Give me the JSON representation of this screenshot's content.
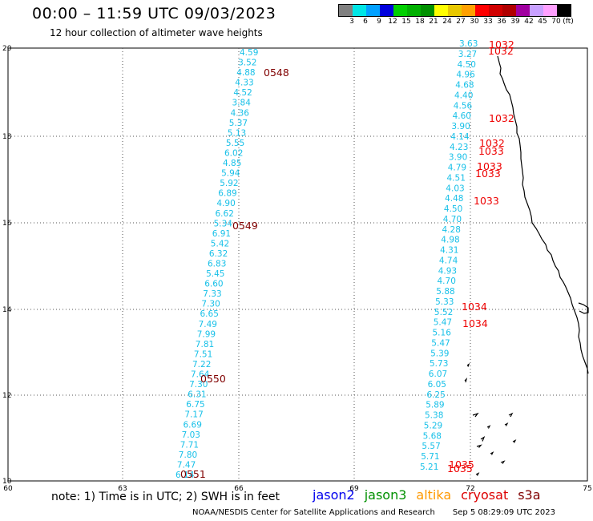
{
  "title": "00:00 – 11:59 UTC 09/03/2023",
  "subtitle": "12 hour collection of altimeter wave heights",
  "colorbar": {
    "colors": [
      "#808080",
      "#00e5e5",
      "#00a0ff",
      "#0000dd",
      "#00d000",
      "#00b000",
      "#009000",
      "#ffff00",
      "#e8c800",
      "#ffa000",
      "#ff0000",
      "#d00000",
      "#b00000",
      "#a000a0",
      "#c8a0ff",
      "#ffa0ff",
      "#000000"
    ],
    "labels": [
      "3",
      "6",
      "9",
      "12",
      "15",
      "18",
      "21",
      "24",
      "27",
      "30",
      "33",
      "36",
      "39",
      "42",
      "45",
      "70",
      "(ft)"
    ]
  },
  "axes": {
    "lon_ticks": [
      "60",
      "63",
      "66",
      "69",
      "72",
      "75"
    ],
    "lat_ticks": [
      "10",
      "12",
      "14",
      "16",
      "18",
      "20"
    ]
  },
  "swh_tracks": {
    "west": [
      "4.59",
      "3.52",
      "4.88",
      "4.33",
      "4.52",
      "3.84",
      "4.36",
      "5.37",
      "5.13",
      "5.55",
      "6.02",
      "4.85",
      "5.94",
      "5.92",
      "6.89",
      "4.90",
      "6.62",
      "5.34",
      "6.91",
      "5.42",
      "6.32",
      "6.83",
      "5.45",
      "6.60",
      "7.33",
      "7.30",
      "6.65",
      "7.49",
      "7.99",
      "7.81",
      "7.51",
      "7.22",
      "7.64",
      "7.30",
      "6.31",
      "6.75",
      "7.17",
      "6.69",
      "7.03",
      "7.71",
      "7.80",
      "7.47",
      "6.14"
    ],
    "east": [
      "3.63",
      "3.27",
      "4.50",
      "4.96",
      "4.68",
      "4.40",
      "4.56",
      "4.60",
      "3.90",
      "4.14",
      "4.23",
      "3.90",
      "4.79",
      "4.51",
      "4.03",
      "4.48",
      "4.50",
      "4.70",
      "4.28",
      "4.98",
      "4.31",
      "4.74",
      "4.93",
      "4.70",
      "5.88",
      "5.33",
      "5.52",
      "5.47",
      "5.16",
      "5.47",
      "5.39",
      "5.73",
      "6.07",
      "6.05",
      "6.25",
      "5.89",
      "5.38",
      "5.29",
      "5.68",
      "5.57",
      "5.71",
      "5.21"
    ]
  },
  "time_labels": {
    "west": [
      "0548",
      "0549",
      "0550",
      "0551"
    ],
    "east": [
      "1032",
      "1032",
      "1032",
      "1032",
      "1033",
      "1033",
      "1033",
      "1033",
      "1034",
      "1034",
      "1035",
      "1035"
    ]
  },
  "footer_note": "note: 1) Time is in UTC; 2) SWH is in feet",
  "legend": [
    {
      "label": "jason2",
      "color": "#0000ee"
    },
    {
      "label": "jason3",
      "color": "#009000"
    },
    {
      "label": "altika",
      "color": "#ff9900"
    },
    {
      "label": "cryosat",
      "color": "#dd0000"
    },
    {
      "label": "s3a",
      "color": "#800000"
    }
  ],
  "credit": "NOAA/NESDIS Center for Satellite Applications and Research",
  "timestamp": "Sep  5 08:29:09 UTC 2023"
}
